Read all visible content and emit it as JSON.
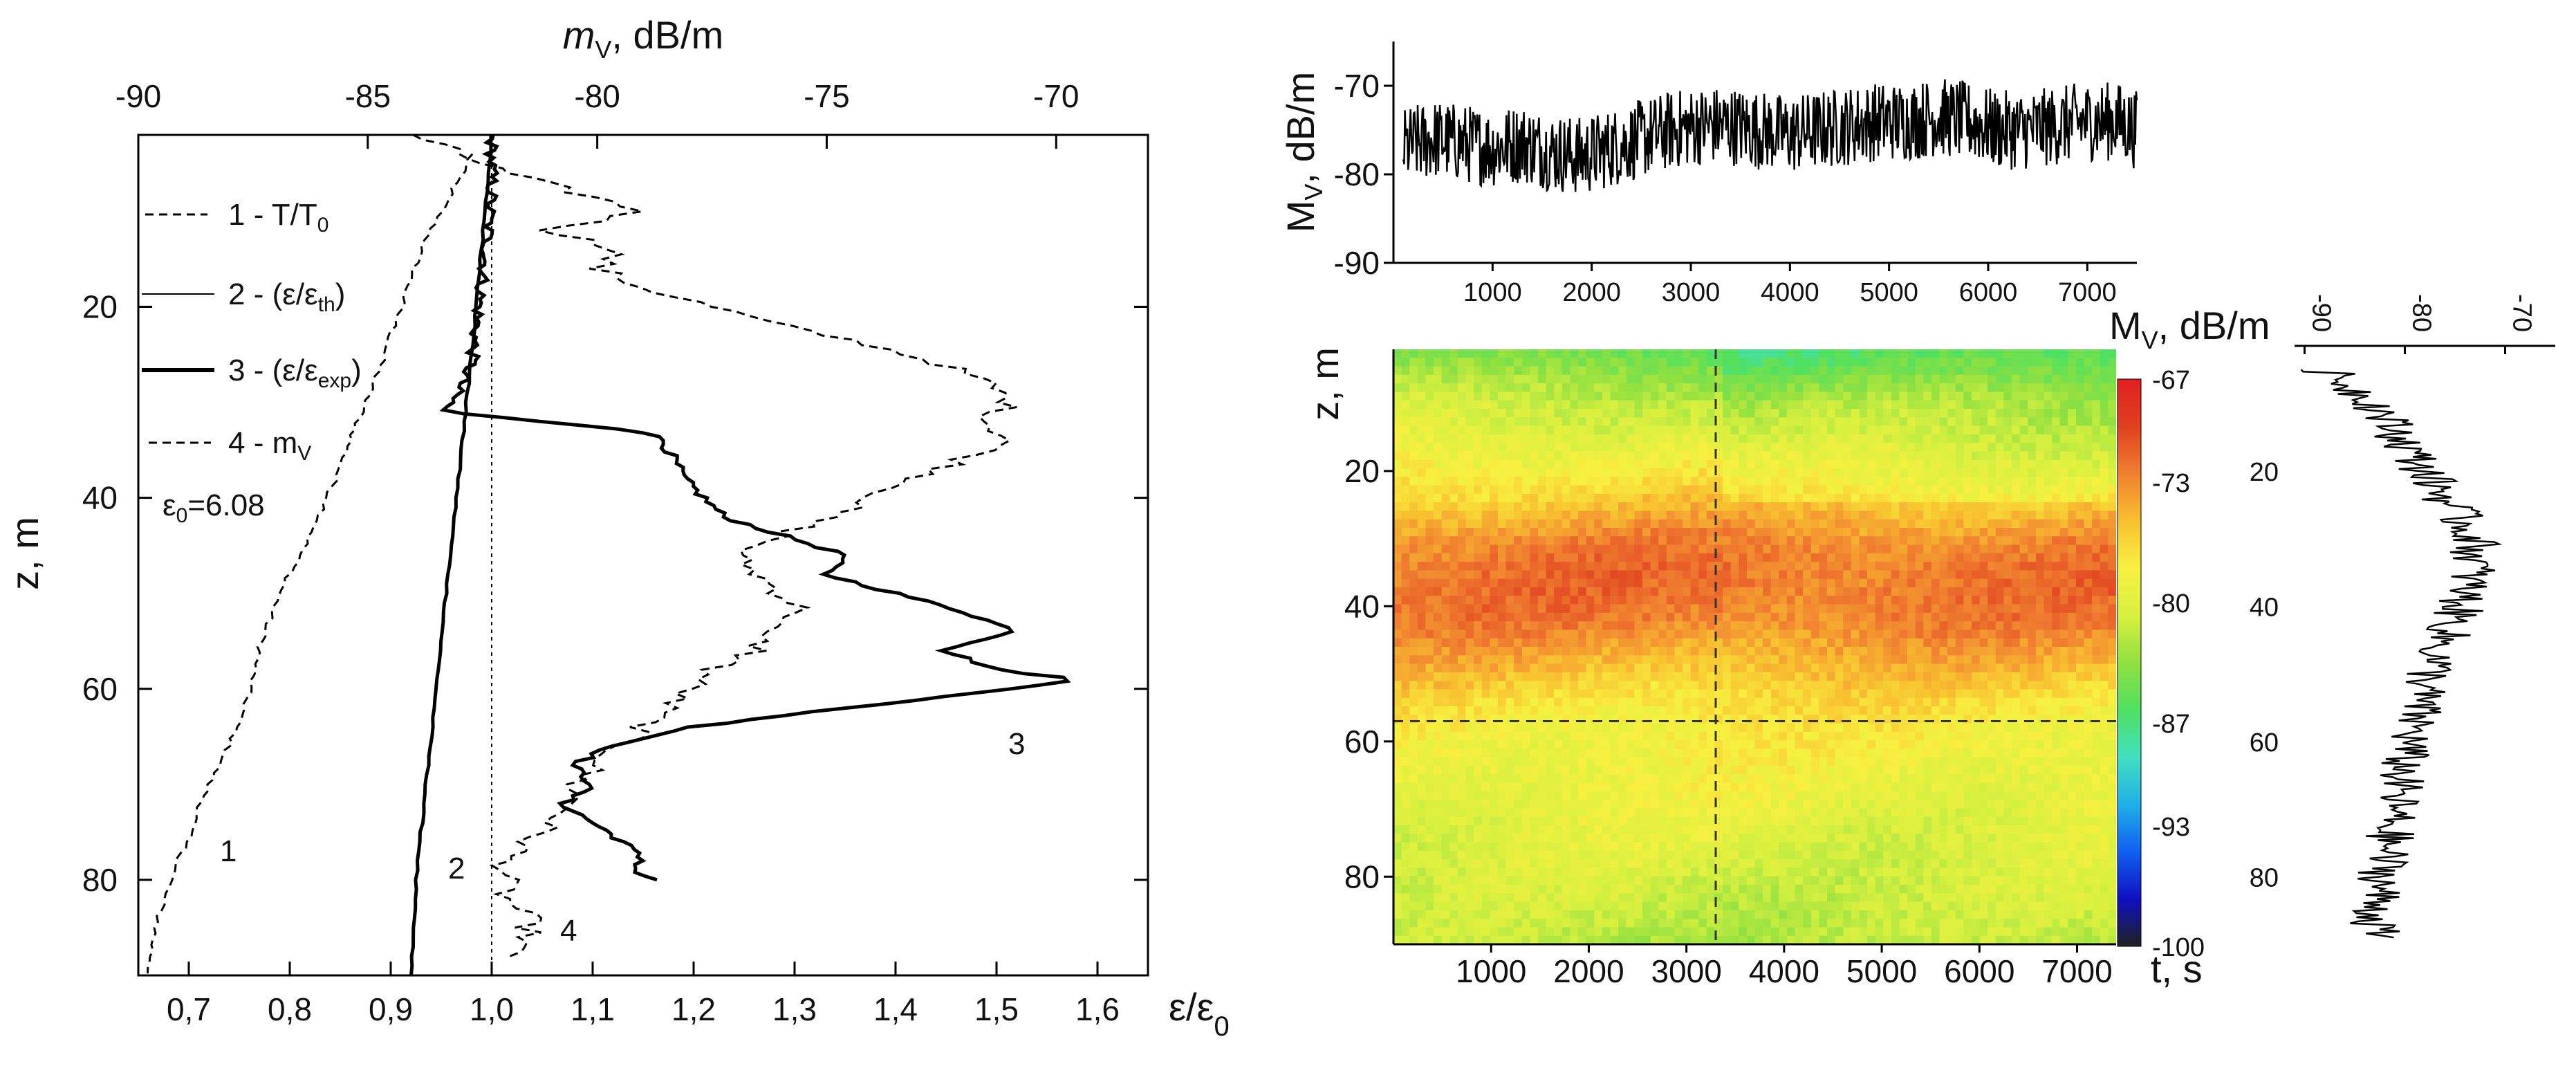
{
  "chart_data": [
    {
      "type": "line",
      "title": "",
      "top_axis": {
        "label_main": "m",
        "label_sub": "V",
        "label_rest": ", dB/m",
        "range": [
          -90,
          -68
        ],
        "ticks": [
          "-90",
          "-85",
          "-80",
          "-75",
          "-70"
        ]
      },
      "x_axis": {
        "label": "ε/ε",
        "label_sub": "0",
        "range": [
          0.65,
          1.65
        ],
        "ticks": [
          "0,7",
          "0,8",
          "0,9",
          "1,0",
          "1,1",
          "1,2",
          "1,3",
          "1,4",
          "1,5",
          "1,6"
        ]
      },
      "y_axis": {
        "label": "z, m",
        "range": [
          2,
          90
        ],
        "inverted": true,
        "ticks": [
          "20",
          "40",
          "60",
          "80"
        ]
      },
      "legend": {
        "placement": "top-left",
        "entries": [
          {
            "style": "dashed",
            "text": "1 - T/T",
            "sub": "0"
          },
          {
            "style": "thin-solid",
            "text": "2 - (ε/ε",
            "text_tail": ")",
            "sub": "th"
          },
          {
            "style": "thick-solid",
            "text": "3 - (ε/ε",
            "text_tail": ")",
            "sub": "exp"
          },
          {
            "style": "dashed",
            "text": "4 - m",
            "sub": "V"
          }
        ],
        "note": "ε",
        "note_sub": "0",
        "note_rest": "=6.08"
      },
      "curve_labels": [
        "1",
        "2",
        "3",
        "4"
      ],
      "series": [
        {
          "name": "1 - T/T0",
          "axis": "bottom",
          "z": [
            4,
            8,
            14,
            20,
            26,
            30,
            34,
            38,
            42,
            46,
            50,
            54,
            58,
            62,
            66,
            70,
            74,
            78,
            82,
            86,
            90
          ],
          "x": [
            0.98,
            0.96,
            0.93,
            0.91,
            0.89,
            0.875,
            0.86,
            0.845,
            0.83,
            0.81,
            0.79,
            0.775,
            0.765,
            0.755,
            0.74,
            0.72,
            0.705,
            0.69,
            0.675,
            0.665,
            0.66
          ]
        },
        {
          "name": "2 - (ε/ε0)th",
          "axis": "bottom",
          "z": [
            2,
            20,
            40,
            60,
            80,
            90
          ],
          "x": [
            1.0,
            0.985,
            0.965,
            0.945,
            0.925,
            0.92
          ]
        },
        {
          "name": "3 - (ε/ε0)exp",
          "axis": "bottom",
          "z": [
            2,
            8,
            14,
            18,
            22,
            26,
            28,
            30,
            31,
            32,
            33,
            34,
            36,
            38,
            40,
            42,
            44,
            46,
            48,
            50,
            52,
            54,
            56,
            58,
            59,
            60,
            62,
            64,
            66,
            68,
            70,
            72,
            74,
            76,
            78,
            79,
            80
          ],
          "x": [
            1.0,
            1.0,
            0.995,
            0.99,
            0.985,
            0.98,
            0.97,
            0.96,
            0.95,
            1.05,
            1.15,
            1.17,
            1.18,
            1.19,
            1.21,
            1.23,
            1.29,
            1.35,
            1.33,
            1.4,
            1.47,
            1.52,
            1.45,
            1.5,
            1.58,
            1.52,
            1.35,
            1.2,
            1.12,
            1.08,
            1.1,
            1.07,
            1.1,
            1.13,
            1.15,
            1.14,
            1.16
          ]
        },
        {
          "name": "4 - mV",
          "axis": "top",
          "z": [
            2,
            4,
            6,
            8,
            10,
            12,
            14,
            16,
            18,
            20,
            22,
            24,
            26,
            28,
            30,
            32,
            34,
            36,
            38,
            40,
            42,
            44,
            46,
            48,
            50,
            52,
            54,
            56,
            58,
            60,
            62,
            64,
            66,
            68,
            70,
            72,
            74,
            76,
            78,
            80,
            82,
            84,
            86,
            88
          ],
          "x": [
            -84,
            -83,
            -82,
            -80.5,
            -79,
            -81,
            -79.5,
            -80,
            -79,
            -77.5,
            -76,
            -74,
            -72.5,
            -71.5,
            -71,
            -71.5,
            -71,
            -72,
            -73,
            -74,
            -75,
            -76,
            -77,
            -76.5,
            -76,
            -75.5,
            -76.5,
            -76.5,
            -77.5,
            -78,
            -78.5,
            -79,
            -79.5,
            -80,
            -80.5,
            -80.5,
            -81,
            -81.5,
            -82,
            -82,
            -82,
            -81.5,
            -81.5,
            -82
          ]
        }
      ]
    },
    {
      "type": "line",
      "title": "",
      "x": [
        100,
        400,
        700,
        1000,
        1300,
        1600,
        1900,
        2200,
        2500,
        2800,
        3100,
        3400,
        3700,
        4000,
        4300,
        4600,
        4900,
        5200,
        5500,
        5800,
        6100,
        6400,
        6700,
        7000,
        7300,
        7500
      ],
      "y": [
        -77,
        -76,
        -76.5,
        -77,
        -76.5,
        -77.5,
        -78,
        -77,
        -76,
        -75,
        -74.5,
        -74.5,
        -75,
        -75.5,
        -75,
        -74.5,
        -74,
        -74,
        -73.5,
        -74,
        -75,
        -75,
        -74.5,
        -74,
        -74,
        -75
      ],
      "x_axis": {
        "range": [
          0,
          7500
        ],
        "ticks": [
          "1000",
          "2000",
          "3000",
          "4000",
          "5000",
          "6000",
          "7000"
        ]
      },
      "y_axis": {
        "label": "M",
        "label_sub": "V",
        "label_rest": ", dB/m",
        "range": [
          -90,
          -65
        ],
        "ticks": [
          "-70",
          "-80",
          "-90"
        ]
      }
    },
    {
      "type": "heatmap",
      "title": "",
      "x_axis": {
        "label": "t, s",
        "range": [
          0,
          7400
        ],
        "ticks": [
          "1000",
          "2000",
          "3000",
          "4000",
          "5000",
          "6000",
          "7000"
        ]
      },
      "y_axis": {
        "label": "z, m",
        "range": [
          2,
          90
        ],
        "inverted": true,
        "ticks": [
          "20",
          "40",
          "60",
          "80"
        ]
      },
      "colorbar": {
        "label": "M",
        "label_sub": "V",
        "label_rest": ", dB/m",
        "range": [
          -100,
          -67
        ],
        "ticks": [
          "-67",
          "-73",
          "-80",
          "-87",
          "-93",
          "-100"
        ],
        "colors": [
          "#202020",
          "#1010c0",
          "#1060f0",
          "#20b0e8",
          "#40e0c0",
          "#50e060",
          "#90e040",
          "#d8f040",
          "#f8f040",
          "#f8c030",
          "#f08030",
          "#e04020",
          "#e02020"
        ]
      },
      "crosshair": {
        "t": 3300,
        "z": 57
      },
      "profile_z": [
        2,
        6,
        10,
        14,
        18,
        22,
        26,
        30,
        34,
        38,
        42,
        46,
        50,
        54,
        58,
        62,
        66,
        70,
        74,
        78,
        82,
        86,
        90
      ],
      "profile_mv": [
        -85,
        -83,
        -81,
        -80,
        -78.5,
        -77,
        -75,
        -73,
        -72,
        -72,
        -72.5,
        -74,
        -75.5,
        -77,
        -78,
        -78.5,
        -79,
        -79.5,
        -80,
        -80.5,
        -81,
        -81.5,
        -82
      ]
    },
    {
      "type": "line",
      "title": "",
      "x_axis": {
        "label": "M",
        "label_sub": "V",
        "label_rest": ", dB/m",
        "range": [
          -91,
          -65
        ],
        "ticks": [
          "-90",
          "-80",
          "-70"
        ]
      },
      "y_axis": {
        "range": [
          2,
          90
        ],
        "inverted": true,
        "ticks": [
          "20",
          "40",
          "60",
          "80"
        ]
      },
      "z": [
        5,
        10,
        14,
        18,
        22,
        26,
        30,
        34,
        38,
        42,
        46,
        50,
        54,
        58,
        62,
        66,
        70,
        74,
        78,
        82,
        86,
        89
      ],
      "mv": [
        -88,
        -83,
        -81,
        -79,
        -77,
        -75,
        -73,
        -73,
        -74,
        -75,
        -76.5,
        -77.5,
        -78.5,
        -79,
        -80,
        -80.5,
        -81,
        -81.5,
        -82,
        -82.5,
        -83,
        -83
      ]
    }
  ]
}
